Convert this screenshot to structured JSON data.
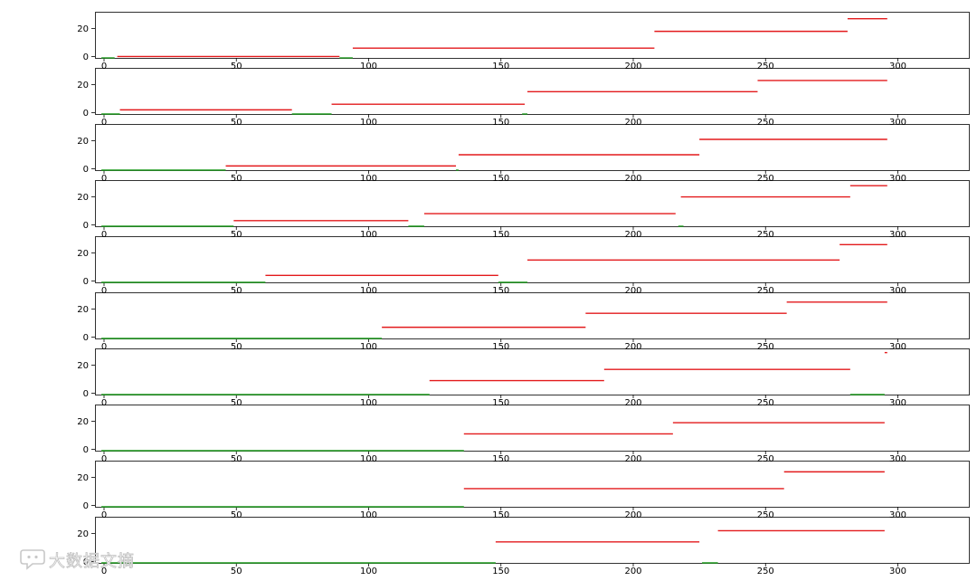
{
  "colors": {
    "red": "#e31a1c",
    "green": "#1f9a1f",
    "axis": "#000000",
    "background": "#ffffff"
  },
  "watermark": {
    "text": "大数据文摘",
    "icon": "chat-bubble-logo"
  },
  "chart_data": [
    {
      "type": "gantt",
      "xlim": [
        -5,
        325
      ],
      "ylim": [
        -1,
        32
      ],
      "xticks": [
        "0",
        "50",
        "100",
        "150",
        "200",
        "250",
        "300"
      ],
      "yticks": [
        "0",
        "20"
      ],
      "series": [
        {
          "color": "green",
          "segments": [
            [
              -1,
              4,
              -1
            ],
            [
              89,
              94,
              -1
            ]
          ]
        },
        {
          "color": "red",
          "segments": [
            [
              5,
              89,
              0
            ],
            [
              94,
              208,
              6
            ],
            [
              208,
              281,
              18
            ],
            [
              281,
              296,
              27
            ]
          ]
        }
      ]
    },
    {
      "type": "gantt",
      "xlim": [
        -5,
        325
      ],
      "ylim": [
        -1,
        32
      ],
      "xticks": [
        "0",
        "50",
        "100",
        "150",
        "200",
        "250",
        "300"
      ],
      "yticks": [
        "0",
        "20"
      ],
      "series": [
        {
          "color": "green",
          "segments": [
            [
              -1,
              6,
              -1
            ],
            [
              71,
              86,
              -1
            ],
            [
              158,
              160,
              -1
            ]
          ]
        },
        {
          "color": "red",
          "segments": [
            [
              6,
              71,
              2
            ],
            [
              86,
              159,
              6
            ],
            [
              160,
              247,
              15
            ],
            [
              247,
              296,
              23
            ]
          ]
        }
      ]
    },
    {
      "type": "gantt",
      "xlim": [
        -5,
        325
      ],
      "ylim": [
        -1,
        32
      ],
      "xticks": [
        "0",
        "50",
        "100",
        "150",
        "200",
        "250",
        "300"
      ],
      "yticks": [
        "0",
        "20"
      ],
      "series": [
        {
          "color": "green",
          "segments": [
            [
              -1,
              46,
              -1
            ],
            [
              133,
              134,
              -1
            ]
          ]
        },
        {
          "color": "red",
          "segments": [
            [
              46,
              133,
              2
            ],
            [
              134,
              225,
              10
            ],
            [
              225,
              296,
              21
            ]
          ]
        }
      ]
    },
    {
      "type": "gantt",
      "xlim": [
        -5,
        325
      ],
      "ylim": [
        -1,
        32
      ],
      "xticks": [
        "0",
        "50",
        "100",
        "150",
        "200",
        "250",
        "300"
      ],
      "yticks": [
        "0",
        "20"
      ],
      "series": [
        {
          "color": "green",
          "segments": [
            [
              -1,
              49,
              -1
            ],
            [
              115,
              121,
              -1
            ],
            [
              217,
              219,
              -1
            ]
          ]
        },
        {
          "color": "red",
          "segments": [
            [
              49,
              115,
              3
            ],
            [
              121,
              216,
              8
            ],
            [
              218,
              282,
              20
            ],
            [
              282,
              296,
              28
            ]
          ]
        }
      ]
    },
    {
      "type": "gantt",
      "xlim": [
        -5,
        325
      ],
      "ylim": [
        -1,
        32
      ],
      "xticks": [
        "0",
        "50",
        "100",
        "150",
        "200",
        "250",
        "300"
      ],
      "yticks": [
        "0",
        "20"
      ],
      "series": [
        {
          "color": "green",
          "segments": [
            [
              -1,
              61,
              -1
            ],
            [
              149,
              160,
              -1
            ]
          ]
        },
        {
          "color": "red",
          "segments": [
            [
              61,
              149,
              4
            ],
            [
              160,
              278,
              15
            ],
            [
              278,
              296,
              26
            ]
          ]
        }
      ]
    },
    {
      "type": "gantt",
      "xlim": [
        -5,
        325
      ],
      "ylim": [
        -1,
        32
      ],
      "xticks": [
        "0",
        "50",
        "100",
        "150",
        "200",
        "250",
        "300"
      ],
      "yticks": [
        "0",
        "20"
      ],
      "series": [
        {
          "color": "green",
          "segments": [
            [
              -1,
              105,
              -1
            ]
          ]
        },
        {
          "color": "red",
          "segments": [
            [
              105,
              182,
              7
            ],
            [
              182,
              258,
              17
            ],
            [
              258,
              296,
              25
            ]
          ]
        }
      ]
    },
    {
      "type": "gantt",
      "xlim": [
        -5,
        325
      ],
      "ylim": [
        -1,
        32
      ],
      "xticks": [
        "0",
        "50",
        "100",
        "150",
        "200",
        "250",
        "300"
      ],
      "yticks": [
        "0",
        "20"
      ],
      "series": [
        {
          "color": "green",
          "segments": [
            [
              -1,
              123,
              -1
            ],
            [
              282,
              295,
              -1
            ]
          ]
        },
        {
          "color": "red",
          "segments": [
            [
              123,
              189,
              9
            ],
            [
              189,
              282,
              17
            ],
            [
              295,
              296,
              29
            ]
          ]
        }
      ]
    },
    {
      "type": "gantt",
      "xlim": [
        -5,
        325
      ],
      "ylim": [
        -1,
        32
      ],
      "xticks": [
        "0",
        "50",
        "100",
        "150",
        "200",
        "250",
        "300"
      ],
      "yticks": [
        "0",
        "20"
      ],
      "series": [
        {
          "color": "green",
          "segments": [
            [
              -1,
              136,
              -1
            ]
          ]
        },
        {
          "color": "red",
          "segments": [
            [
              136,
              215,
              11
            ],
            [
              215,
              295,
              19
            ]
          ]
        }
      ]
    },
    {
      "type": "gantt",
      "xlim": [
        -5,
        325
      ],
      "ylim": [
        -1,
        32
      ],
      "xticks": [
        "0",
        "50",
        "100",
        "150",
        "200",
        "250",
        "300"
      ],
      "yticks": [
        "0",
        "20"
      ],
      "series": [
        {
          "color": "green",
          "segments": [
            [
              -1,
              136,
              -1
            ]
          ]
        },
        {
          "color": "red",
          "segments": [
            [
              136,
              257,
              12
            ],
            [
              257,
              295,
              24
            ]
          ]
        }
      ]
    },
    {
      "type": "gantt",
      "xlim": [
        -5,
        325
      ],
      "ylim": [
        -1,
        32
      ],
      "xticks": [
        "0",
        "50",
        "100",
        "150",
        "200",
        "250",
        "300"
      ],
      "yticks": [
        "0",
        "20"
      ],
      "series": [
        {
          "color": "green",
          "segments": [
            [
              -1,
              148,
              -1
            ],
            [
              226,
              232,
              -1
            ]
          ]
        },
        {
          "color": "red",
          "segments": [
            [
              148,
              225,
              14
            ],
            [
              232,
              295,
              22
            ]
          ]
        }
      ]
    }
  ]
}
